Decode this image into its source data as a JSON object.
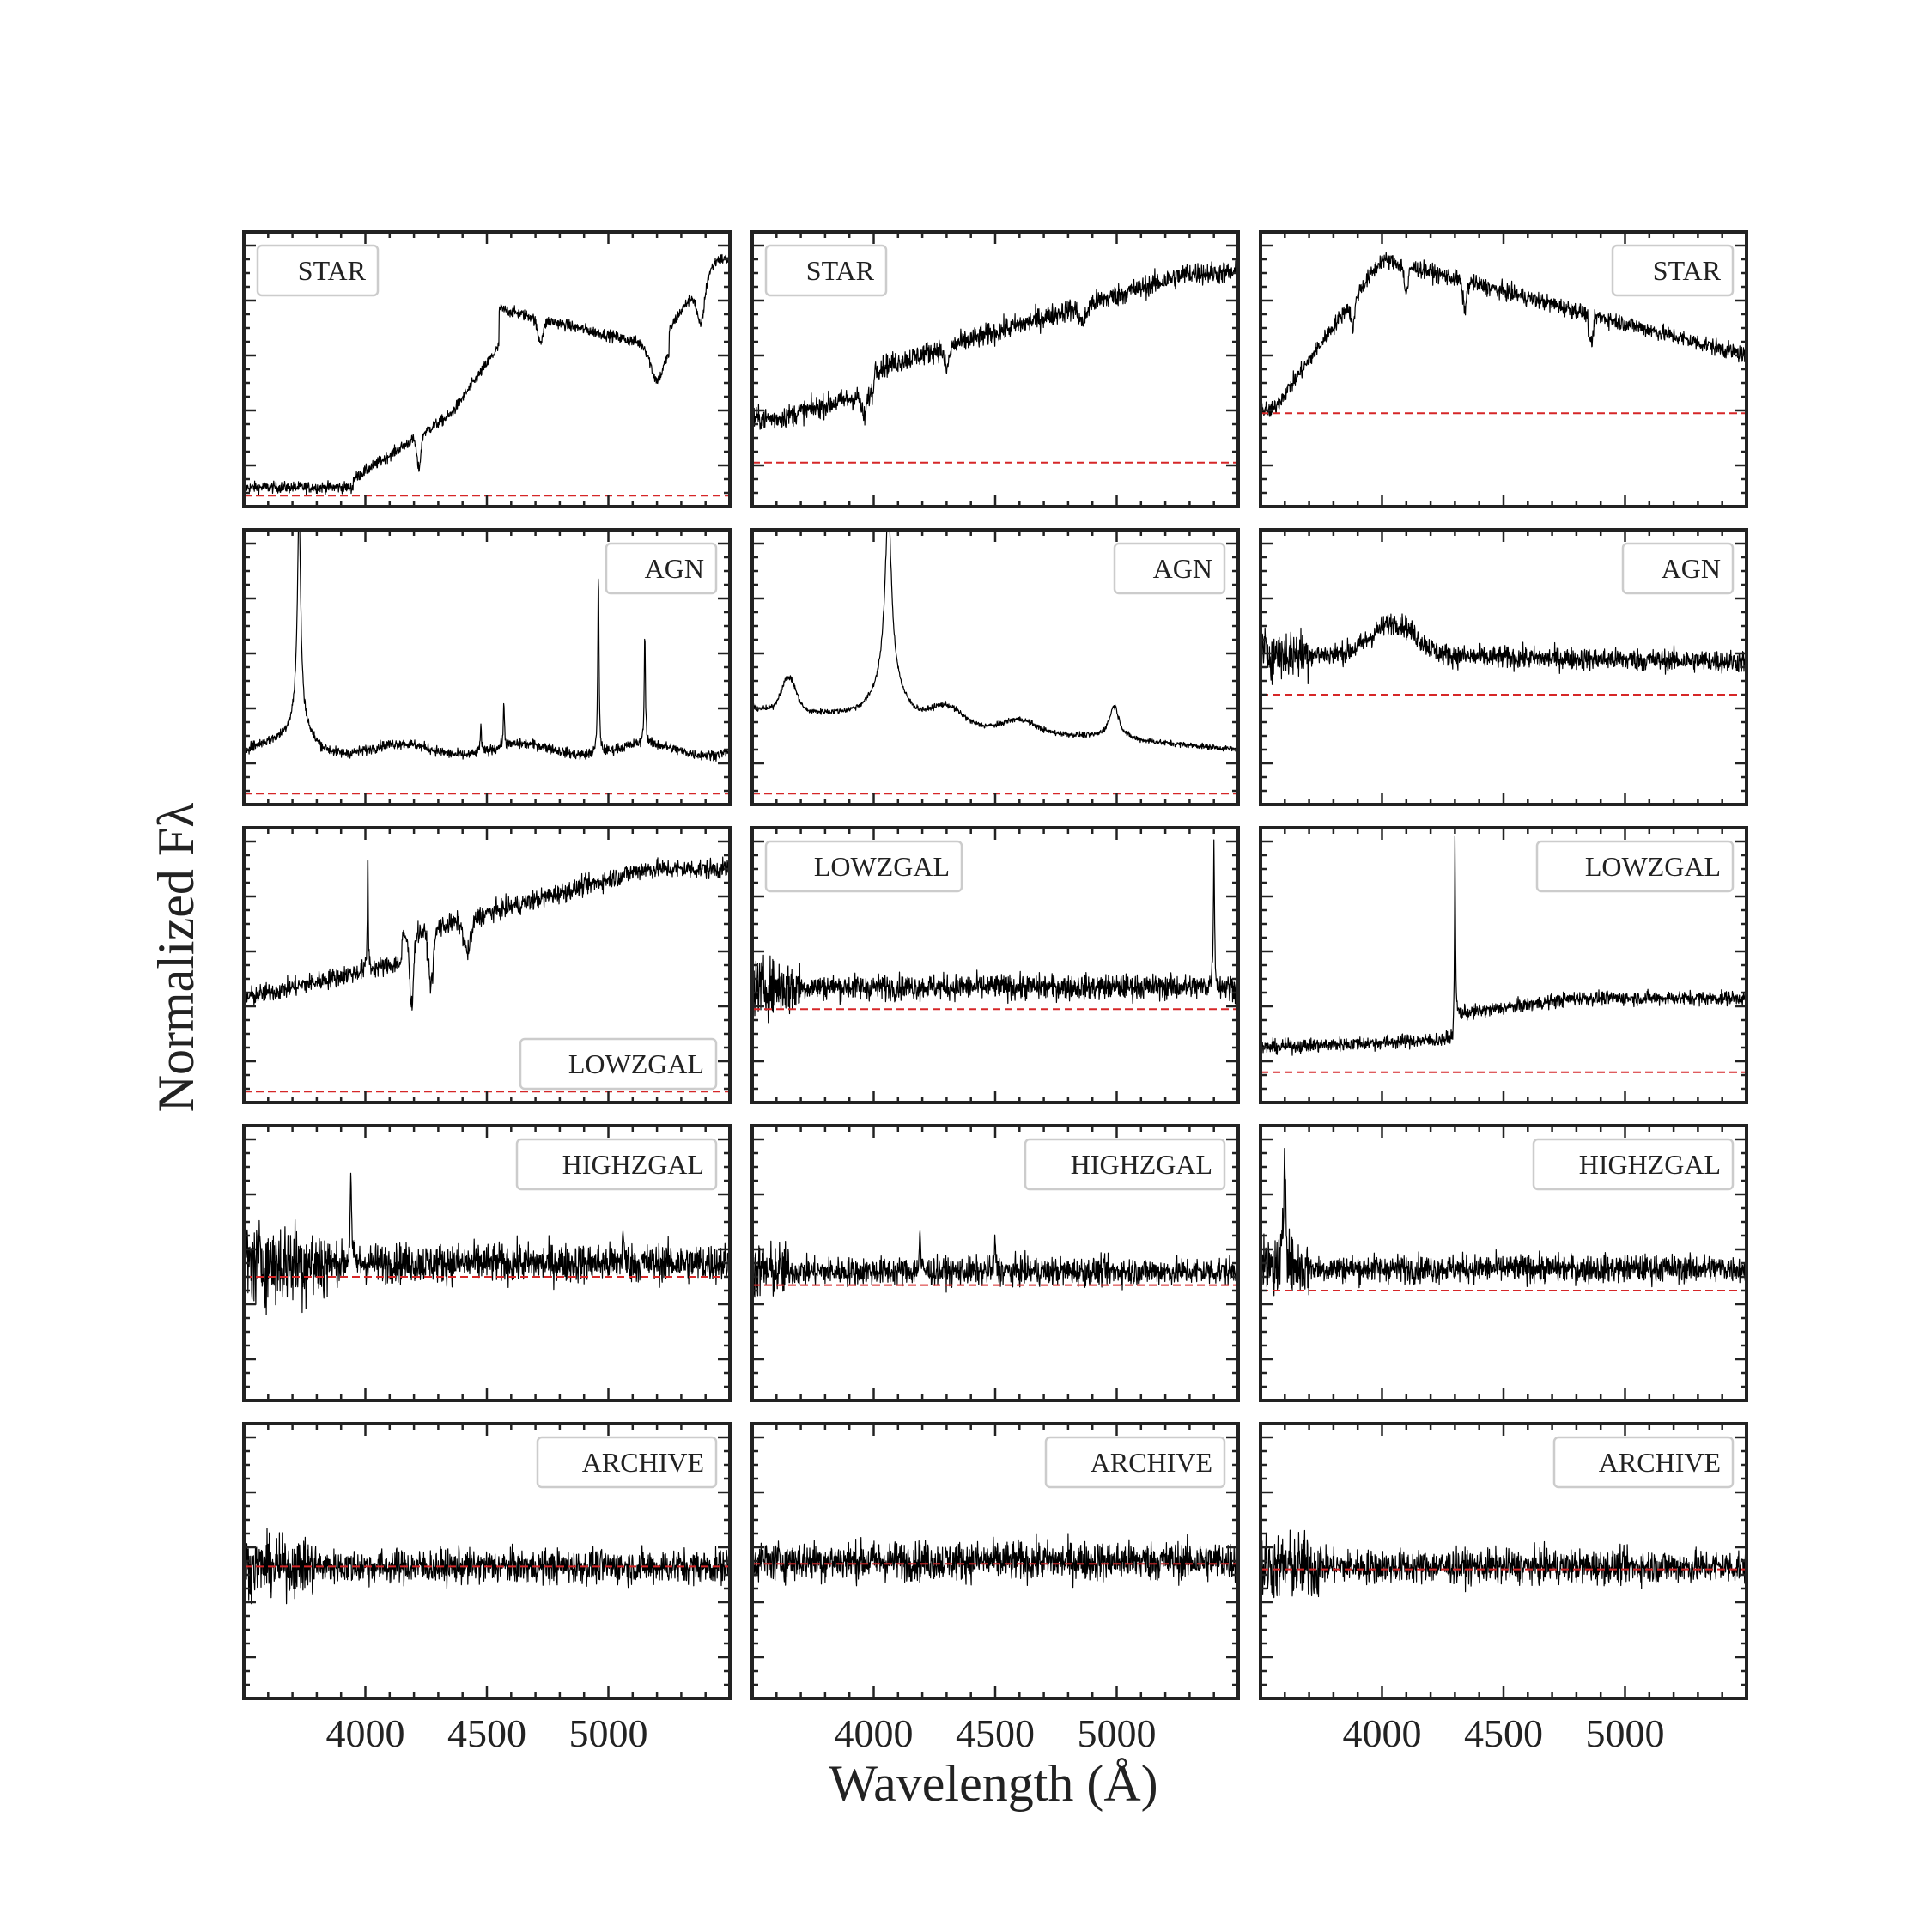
{
  "figure": {
    "xlabel": "Wavelength (Å)",
    "ylabel": "Normalized Fλ",
    "colors": {
      "spectrum": "#000000",
      "reference_line": "#d62728",
      "frame": "#222222",
      "legend_border": "#cccccc"
    }
  },
  "chart_data": {
    "type": "line",
    "layout": "5 rows x 3 columns grid of spectra, shared x axis",
    "x_range": [
      3500,
      5500
    ],
    "x_ticks": [
      4000,
      4500,
      5000
    ],
    "x_unit": "Å",
    "y_ticks_labeled": false,
    "grid": false,
    "panels": [
      {
        "label": "STAR",
        "legend_loc": "upper left",
        "ref_level": 0.04,
        "shape": "red_star_bumpy"
      },
      {
        "label": "STAR",
        "legend_loc": "upper left",
        "ref_level": 0.16,
        "shape": "red_star_rising"
      },
      {
        "label": "STAR",
        "legend_loc": "upper right",
        "ref_level": 0.34,
        "shape": "hot_star_peak"
      },
      {
        "label": "AGN",
        "legend_loc": "upper right",
        "ref_level": 0.04,
        "shape": "agn_narrow_lines"
      },
      {
        "label": "AGN",
        "legend_loc": "upper right",
        "ref_level": 0.04,
        "shape": "agn_broad_lines"
      },
      {
        "label": "AGN",
        "legend_loc": "upper right",
        "ref_level": 0.4,
        "shape": "agn_noisy"
      },
      {
        "label": "LOWZGAL",
        "legend_loc": "lower right",
        "ref_level": 0.04,
        "shape": "lowz_absorption"
      },
      {
        "label": "LOWZGAL",
        "legend_loc": "upper left",
        "ref_level": 0.34,
        "shape": "lowz_noisy_line"
      },
      {
        "label": "LOWZGAL",
        "legend_loc": "upper right",
        "ref_level": 0.11,
        "shape": "lowz_break_line"
      },
      {
        "label": "HIGHZGAL",
        "legend_loc": "upper right",
        "ref_level": 0.45,
        "shape": "noise_spike_early"
      },
      {
        "label": "HIGHZGAL",
        "legend_loc": "upper right",
        "ref_level": 0.42,
        "shape": "noise_spike_mid"
      },
      {
        "label": "HIGHZGAL",
        "legend_loc": "upper right",
        "ref_level": 0.4,
        "shape": "noise_spike_blue_edge"
      },
      {
        "label": "ARCHIVE",
        "legend_loc": "upper right",
        "ref_level": 0.48,
        "shape": "pure_noise"
      },
      {
        "label": "ARCHIVE",
        "legend_loc": "upper right",
        "ref_level": 0.49,
        "shape": "pure_noise_wide"
      },
      {
        "label": "ARCHIVE",
        "legend_loc": "upper right",
        "ref_level": 0.47,
        "shape": "pure_noise_blue"
      }
    ]
  }
}
